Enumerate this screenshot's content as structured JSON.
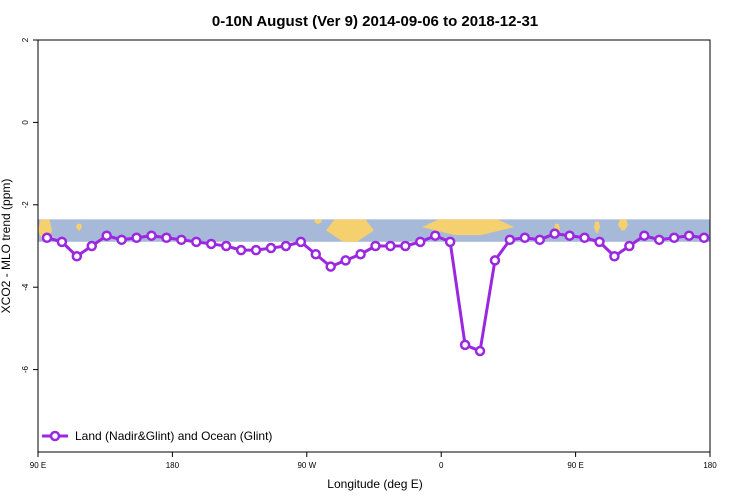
{
  "chart_data": {
    "type": "line",
    "title": "0-10N August (Ver 9)   2014-09-06 to 2018-12-31",
    "xlabel": "Longitude (deg E)",
    "ylabel": "XCO2 - MLO trend (ppm)",
    "xlim": [
      90,
      540
    ],
    "ylim": [
      -8,
      2
    ],
    "x_ticks": [
      {
        "value": 90,
        "label": "90 E"
      },
      {
        "value": 180,
        "label": "180"
      },
      {
        "value": 270,
        "label": "90 W"
      },
      {
        "value": 360,
        "label": "0"
      },
      {
        "value": 450,
        "label": "90 E"
      },
      {
        "value": 540,
        "label": "180"
      }
    ],
    "y_ticks": [
      {
        "value": -6,
        "label": "-6"
      },
      {
        "value": -4,
        "label": "-4"
      },
      {
        "value": -2,
        "label": "-2"
      },
      {
        "value": 0,
        "label": "0"
      },
      {
        "value": 2,
        "label": "2"
      }
    ],
    "grid": false,
    "legend_position": "bottom-left",
    "map_band": {
      "y_top": -2.35,
      "y_bottom": -2.9,
      "ocean_color": "#a6b9d8",
      "land_color": "#f5d06f"
    },
    "series": [
      {
        "name": "Land (Nadir&Glint) and Ocean (Glint)",
        "color": "#9b27e0",
        "x": [
          96,
          106,
          116,
          126,
          136,
          146,
          156,
          166,
          176,
          186,
          196,
          206,
          216,
          226,
          236,
          246,
          256,
          266,
          276,
          286,
          296,
          306,
          316,
          326,
          336,
          346,
          356,
          366,
          376,
          386,
          396,
          406,
          416,
          426,
          436,
          446,
          456,
          466,
          476,
          486,
          496,
          506,
          516,
          526,
          536
        ],
        "y": [
          -2.8,
          -2.9,
          -3.25,
          -3.0,
          -2.75,
          -2.85,
          -2.8,
          -2.75,
          -2.8,
          -2.85,
          -2.9,
          -2.95,
          -3.0,
          -3.1,
          -3.1,
          -3.05,
          -3.0,
          -2.9,
          -3.2,
          -3.5,
          -3.35,
          -3.2,
          -3.0,
          -3.0,
          -3.0,
          -2.9,
          -2.75,
          -2.9,
          -5.4,
          -5.55,
          -3.35,
          -2.85,
          -2.8,
          -2.85,
          -2.7,
          -2.75,
          -2.8,
          -2.9,
          -3.25,
          -3.0,
          -2.75,
          -2.85,
          -2.8,
          -2.75,
          -2.8
        ]
      }
    ]
  }
}
